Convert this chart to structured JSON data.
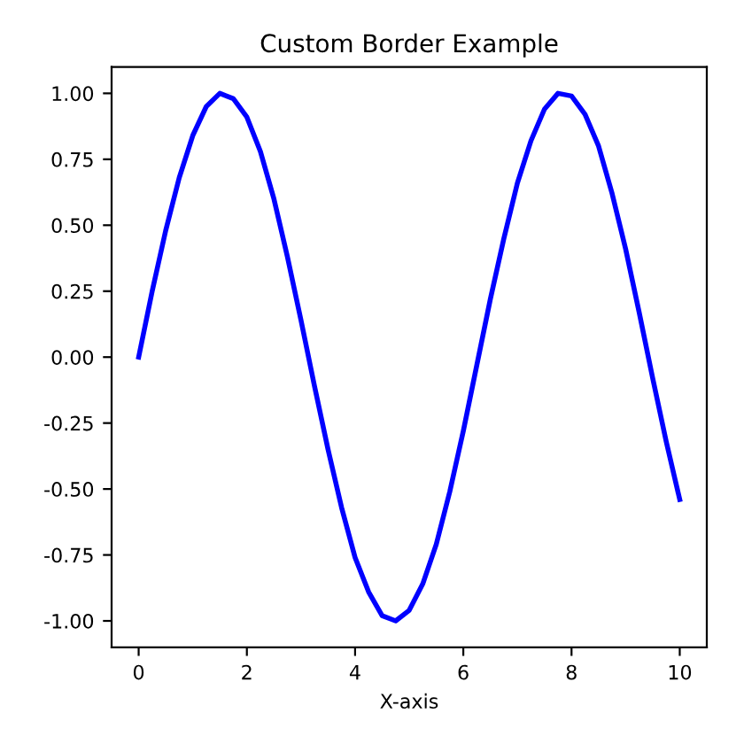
{
  "chart_data": {
    "type": "line",
    "title": "Custom Border Example",
    "xlabel": "X-axis",
    "x": [
      0,
      0.25,
      0.5,
      0.75,
      1,
      1.25,
      1.5,
      1.75,
      2,
      2.25,
      2.5,
      2.75,
      3,
      3.25,
      3.5,
      3.75,
      4,
      4.25,
      4.5,
      4.75,
      5,
      5.25,
      5.5,
      5.75,
      6,
      6.25,
      6.5,
      6.75,
      7,
      7.25,
      7.5,
      7.75,
      8,
      8.25,
      8.5,
      8.75,
      9,
      9.25,
      9.5,
      9.75,
      10
    ],
    "series": [
      {
        "color": "#0000ff",
        "values": [
          0,
          0.25,
          0.48,
          0.68,
          0.84,
          0.95,
          1.0,
          0.98,
          0.91,
          0.78,
          0.6,
          0.38,
          0.14,
          -0.11,
          -0.35,
          -0.57,
          -0.76,
          -0.89,
          -0.98,
          -1.0,
          -0.96,
          -0.86,
          -0.71,
          -0.51,
          -0.28,
          -0.03,
          0.22,
          0.45,
          0.66,
          0.82,
          0.94,
          1.0,
          0.99,
          0.92,
          0.8,
          0.62,
          0.41,
          0.17,
          -0.08,
          -0.32,
          -0.54
        ]
      }
    ],
    "xlim": [
      -0.5,
      10.5
    ],
    "ylim": [
      -1.1,
      1.1
    ],
    "xticks": [
      0,
      2,
      4,
      6,
      8,
      10
    ],
    "yticks": [
      {
        "value": -1,
        "label": "-1.00"
      },
      {
        "value": -0.75,
        "label": "-0.75"
      },
      {
        "value": -0.5,
        "label": "-0.50"
      },
      {
        "value": -0.25,
        "label": "-0.25"
      },
      {
        "value": 0,
        "label": "0.00"
      },
      {
        "value": 0.25,
        "label": "0.25"
      },
      {
        "value": 0.5,
        "label": "0.50"
      },
      {
        "value": 0.75,
        "label": "0.75"
      },
      {
        "value": 1,
        "label": "1.00"
      }
    ],
    "grid": false,
    "legend": false,
    "marker": "none",
    "line_style": "solid"
  }
}
